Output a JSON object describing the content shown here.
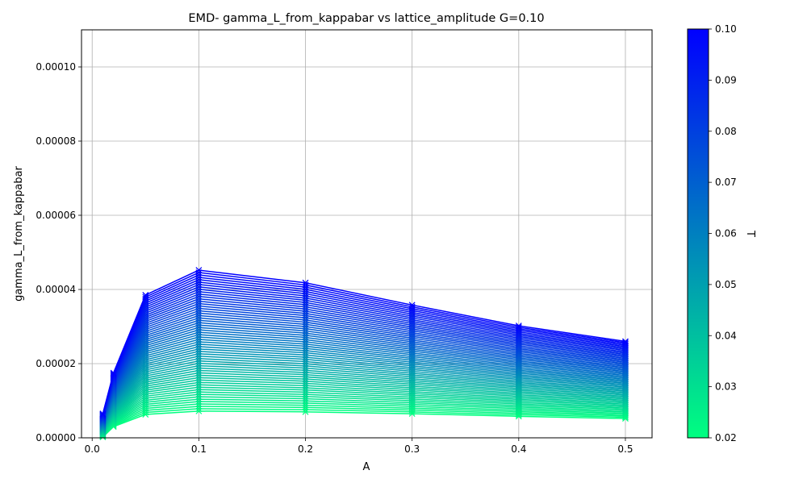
{
  "chart_data": {
    "type": "line",
    "title": "EMD- gamma_L_from_kappabar vs lattice_amplitude G=0.10",
    "xlabel": "A",
    "ylabel": "gamma_L_from_kappabar",
    "xlim": [
      -0.01,
      0.525
    ],
    "ylim": [
      0,
      0.00011
    ],
    "xticks": [
      0.0,
      0.1,
      0.2,
      0.3,
      0.4,
      0.5
    ],
    "xtick_labels": [
      "0.0",
      "0.1",
      "0.2",
      "0.3",
      "0.4",
      "0.5"
    ],
    "yticks": [
      0,
      2e-05,
      4e-05,
      6e-05,
      8e-05,
      0.0001
    ],
    "ytick_labels": [
      "0.00000",
      "0.00002",
      "0.00004",
      "0.00006",
      "0.00008",
      "0.00010"
    ],
    "grid": true,
    "marker": "x",
    "x": [
      0.01,
      0.02,
      0.05,
      0.1,
      0.2,
      0.3,
      0.4,
      0.5
    ],
    "series_parameter": "T",
    "T_range": [
      0.02,
      0.1
    ],
    "series_count": 60,
    "series_low_T": {
      "T": 0.02,
      "values": [
        2e-07,
        3e-06,
        6.3e-06,
        7.2e-06,
        7e-06,
        6.5e-06,
        5.8e-06,
        5.2e-06
      ]
    },
    "series_high_T": {
      "T": 0.1,
      "values": [
        6.5e-06,
        1.75e-05,
        3.85e-05,
        4.52e-05,
        4.18e-05,
        3.58e-05,
        3.02e-05,
        2.6e-05
      ]
    },
    "colorbar": {
      "label": "T",
      "range": [
        0.02,
        0.1
      ],
      "ticks": [
        0.02,
        0.03,
        0.04,
        0.05,
        0.06,
        0.07,
        0.08,
        0.09,
        0.1
      ],
      "tick_labels": [
        "0.02",
        "0.03",
        "0.04",
        "0.05",
        "0.06",
        "0.07",
        "0.08",
        "0.09",
        "0.10"
      ],
      "color_low": "#00ff80",
      "color_high": "#0000ff"
    }
  }
}
